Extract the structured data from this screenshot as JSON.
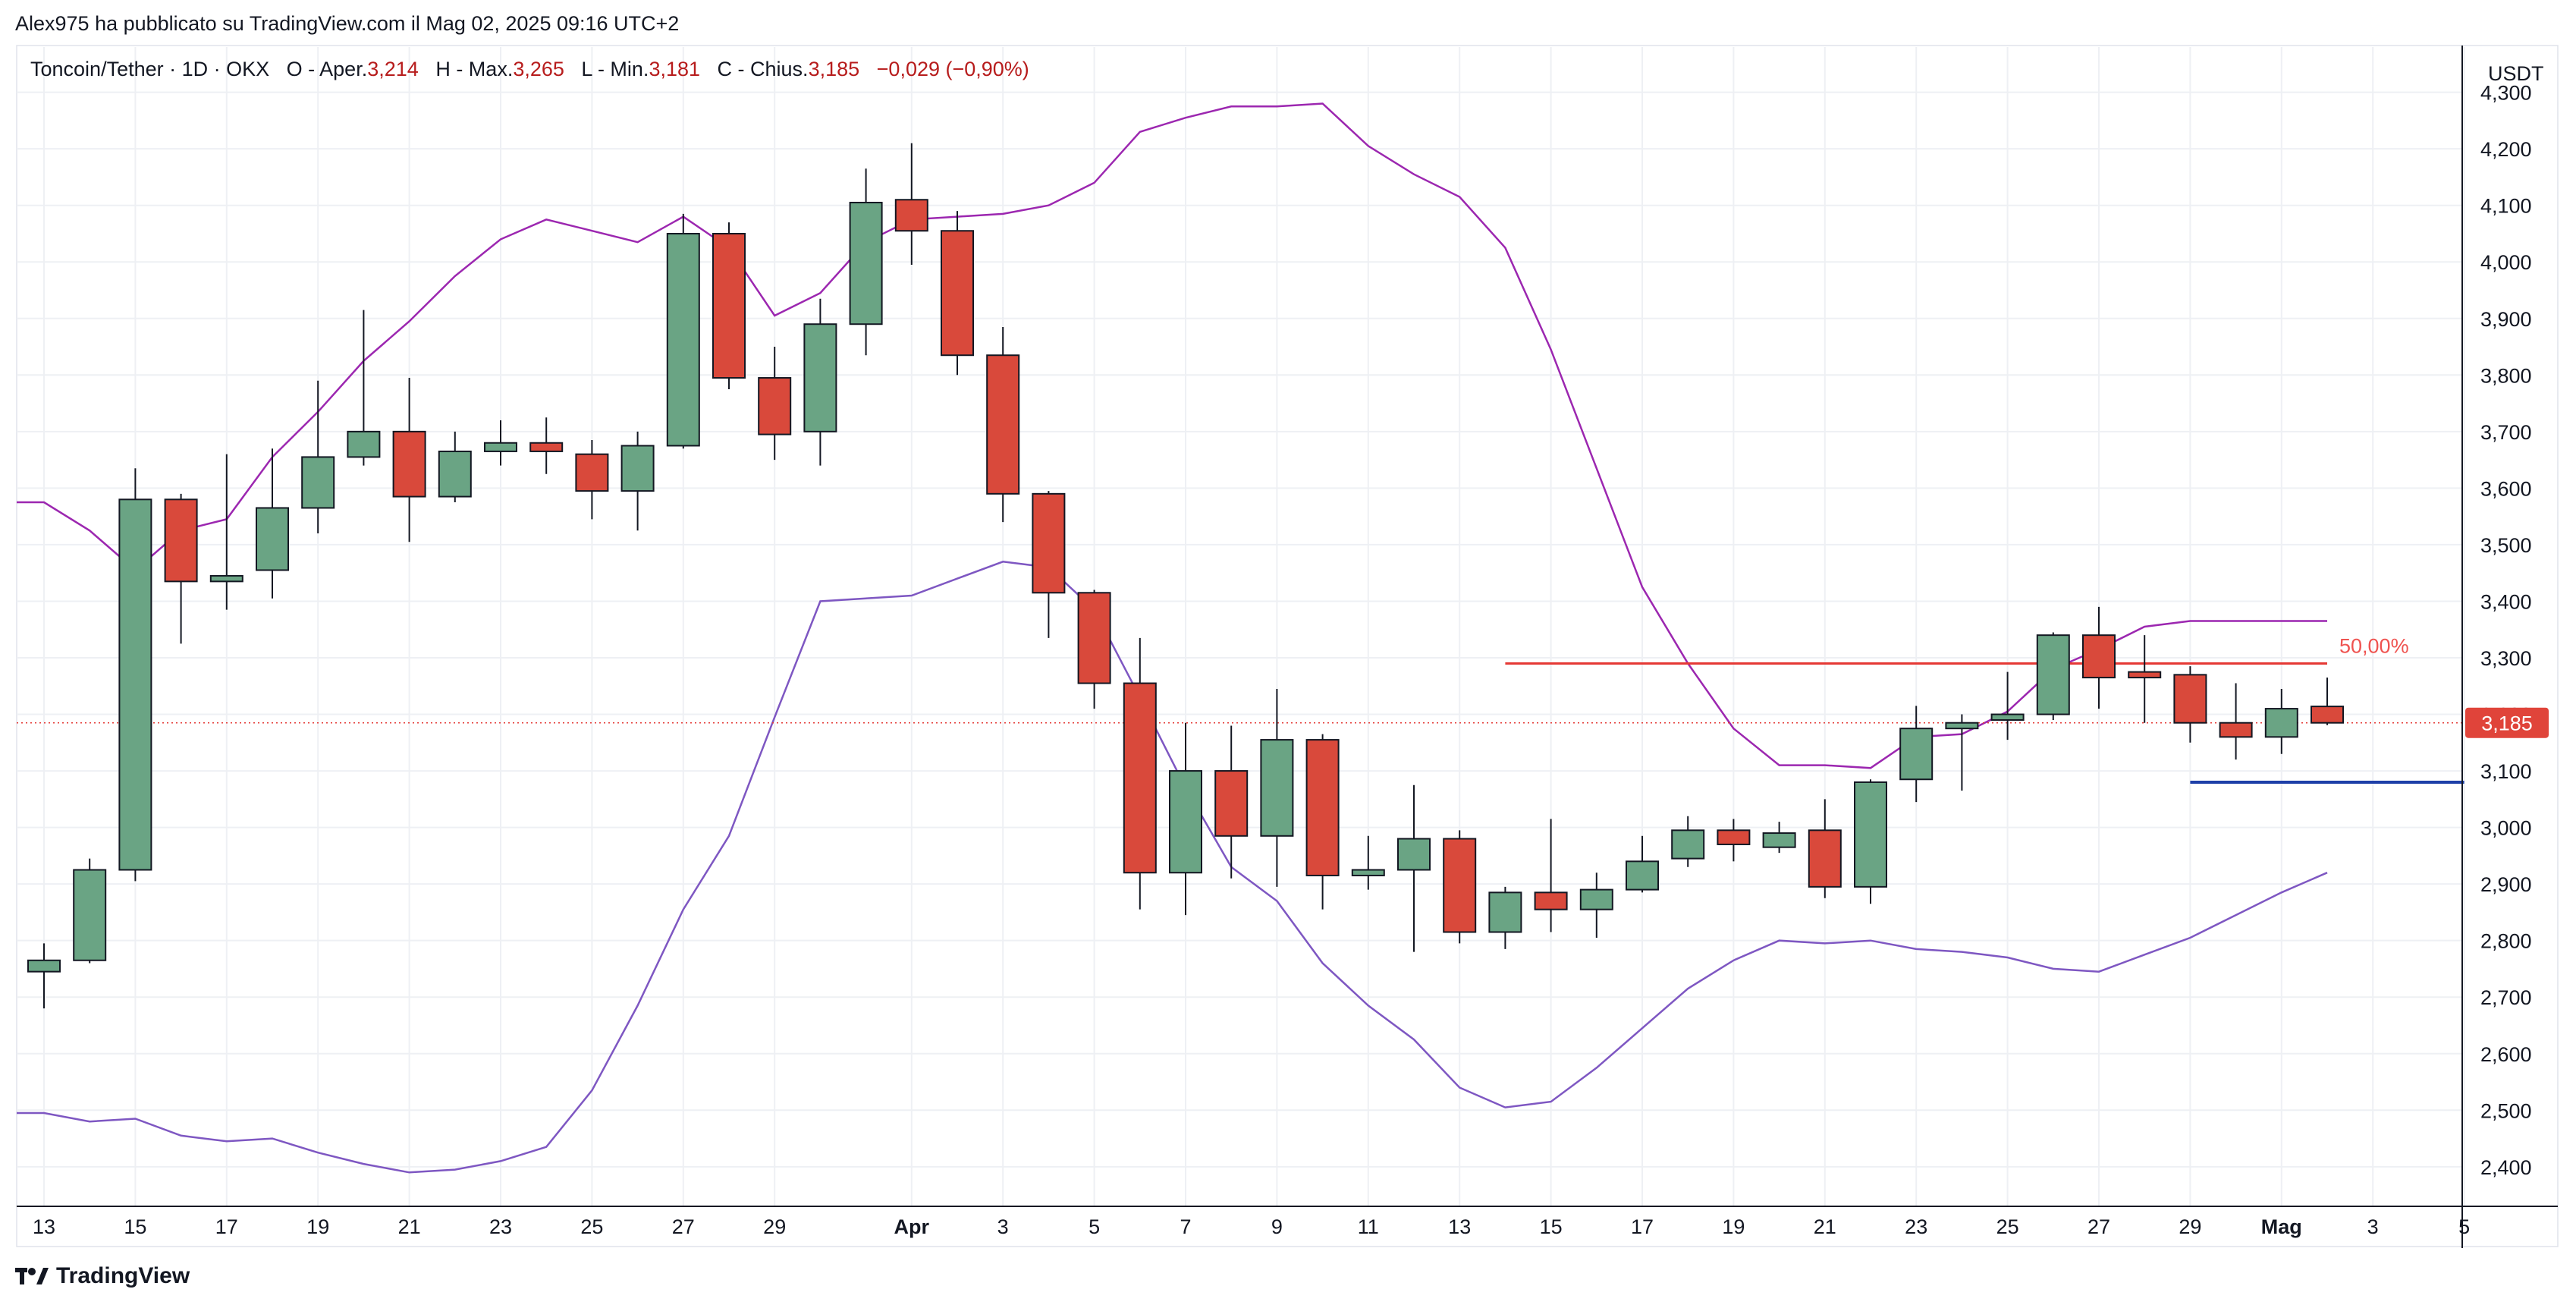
{
  "attribution": "Alex975 ha pubblicato su TradingView.com il Mag 02, 2025 09:16 UTC+2",
  "symbol_line": {
    "name": "Toncoin/Tether · 1D · OKX",
    "open_label": "O - Aper.",
    "open": "3,214",
    "high_label": "H - Max.",
    "high": "3,265",
    "low_label": "L - Min.",
    "low": "3,181",
    "close_label": "C - Chius.",
    "close": "3,185",
    "change": "−0,029 (−0,90%)"
  },
  "currency": "USDT",
  "footer_brand": "TradingView",
  "colors": {
    "up": "#6aa484",
    "down": "#d9493b",
    "band": "#9c27b0",
    "band_lower": "#7e57c2",
    "hline": "#e53935",
    "support": "#1e3fa8",
    "last_price_bg": "#e0443a"
  },
  "chart_data": {
    "type": "candlestick",
    "title": "Toncoin/Tether · 1D · OKX",
    "ylabel": "USDT",
    "ylim": [
      2.33,
      4.38
    ],
    "y_ticks": [
      "2,400",
      "2,500",
      "2,600",
      "2,700",
      "2,800",
      "2,900",
      "3,000",
      "3,100",
      "3,200",
      "3,300",
      "3,400",
      "3,500",
      "3,600",
      "3,700",
      "3,800",
      "3,900",
      "4,000",
      "4,100",
      "4,200",
      "4,300"
    ],
    "x_ticks": [
      {
        "label": "13",
        "i": 0
      },
      {
        "label": "15",
        "i": 2
      },
      {
        "label": "17",
        "i": 4
      },
      {
        "label": "19",
        "i": 6
      },
      {
        "label": "21",
        "i": 8
      },
      {
        "label": "23",
        "i": 10
      },
      {
        "label": "25",
        "i": 12
      },
      {
        "label": "27",
        "i": 14
      },
      {
        "label": "29",
        "i": 16
      },
      {
        "label": "Apr",
        "i": 19,
        "bold": true
      },
      {
        "label": "3",
        "i": 21
      },
      {
        "label": "5",
        "i": 23
      },
      {
        "label": "7",
        "i": 25
      },
      {
        "label": "9",
        "i": 27
      },
      {
        "label": "11",
        "i": 29
      },
      {
        "label": "13",
        "i": 31
      },
      {
        "label": "15",
        "i": 33
      },
      {
        "label": "17",
        "i": 35
      },
      {
        "label": "19",
        "i": 37
      },
      {
        "label": "21",
        "i": 39
      },
      {
        "label": "23",
        "i": 41
      },
      {
        "label": "25",
        "i": 43
      },
      {
        "label": "27",
        "i": 45
      },
      {
        "label": "29",
        "i": 47
      },
      {
        "label": "Mag",
        "i": 49,
        "bold": true
      },
      {
        "label": "3",
        "i": 51
      },
      {
        "label": "5",
        "i": 53
      }
    ],
    "candles": [
      {
        "date": "Mar 13",
        "o": 2.745,
        "h": 2.795,
        "l": 2.68,
        "c": 2.765
      },
      {
        "date": "Mar 14",
        "o": 2.765,
        "h": 2.945,
        "l": 2.76,
        "c": 2.925
      },
      {
        "date": "Mar 15",
        "o": 2.925,
        "h": 3.635,
        "l": 2.905,
        "c": 3.58
      },
      {
        "date": "Mar 16",
        "o": 3.58,
        "h": 3.59,
        "l": 3.325,
        "c": 3.435
      },
      {
        "date": "Mar 17",
        "o": 3.435,
        "h": 3.66,
        "l": 3.385,
        "c": 3.445
      },
      {
        "date": "Mar 18",
        "o": 3.455,
        "h": 3.67,
        "l": 3.405,
        "c": 3.565
      },
      {
        "date": "Mar 19",
        "o": 3.565,
        "h": 3.79,
        "l": 3.52,
        "c": 3.655
      },
      {
        "date": "Mar 20",
        "o": 3.655,
        "h": 3.915,
        "l": 3.64,
        "c": 3.7
      },
      {
        "date": "Mar 21",
        "o": 3.7,
        "h": 3.795,
        "l": 3.505,
        "c": 3.585
      },
      {
        "date": "Mar 22",
        "o": 3.585,
        "h": 3.7,
        "l": 3.575,
        "c": 3.665
      },
      {
        "date": "Mar 23",
        "o": 3.665,
        "h": 3.72,
        "l": 3.64,
        "c": 3.68
      },
      {
        "date": "Mar 24",
        "o": 3.68,
        "h": 3.725,
        "l": 3.625,
        "c": 3.665
      },
      {
        "date": "Mar 25",
        "o": 3.66,
        "h": 3.685,
        "l": 3.545,
        "c": 3.595
      },
      {
        "date": "Mar 26",
        "o": 3.595,
        "h": 3.7,
        "l": 3.525,
        "c": 3.675
      },
      {
        "date": "Mar 27",
        "o": 3.675,
        "h": 4.085,
        "l": 3.67,
        "c": 4.05
      },
      {
        "date": "Mar 28",
        "o": 4.05,
        "h": 4.07,
        "l": 3.775,
        "c": 3.795
      },
      {
        "date": "Mar 29",
        "o": 3.795,
        "h": 3.85,
        "l": 3.65,
        "c": 3.695
      },
      {
        "date": "Mar 30",
        "o": 3.7,
        "h": 3.935,
        "l": 3.64,
        "c": 3.89
      },
      {
        "date": "Mar 31",
        "o": 3.89,
        "h": 4.165,
        "l": 3.835,
        "c": 4.105
      },
      {
        "date": "Apr 1",
        "o": 4.11,
        "h": 4.21,
        "l": 3.995,
        "c": 4.055
      },
      {
        "date": "Apr 2",
        "o": 4.055,
        "h": 4.09,
        "l": 3.8,
        "c": 3.835
      },
      {
        "date": "Apr 3",
        "o": 3.835,
        "h": 3.885,
        "l": 3.54,
        "c": 3.59
      },
      {
        "date": "Apr 4",
        "o": 3.59,
        "h": 3.595,
        "l": 3.335,
        "c": 3.415
      },
      {
        "date": "Apr 5",
        "o": 3.415,
        "h": 3.42,
        "l": 3.21,
        "c": 3.255
      },
      {
        "date": "Apr 6",
        "o": 3.255,
        "h": 3.335,
        "l": 2.855,
        "c": 2.92
      },
      {
        "date": "Apr 7",
        "o": 2.92,
        "h": 3.185,
        "l": 2.845,
        "c": 3.1
      },
      {
        "date": "Apr 8",
        "o": 3.1,
        "h": 3.18,
        "l": 2.91,
        "c": 2.985
      },
      {
        "date": "Apr 9",
        "o": 2.985,
        "h": 3.245,
        "l": 2.895,
        "c": 3.155
      },
      {
        "date": "Apr 10",
        "o": 3.155,
        "h": 3.165,
        "l": 2.855,
        "c": 2.915
      },
      {
        "date": "Apr 11",
        "o": 2.915,
        "h": 2.985,
        "l": 2.89,
        "c": 2.925
      },
      {
        "date": "Apr 12",
        "o": 2.925,
        "h": 3.075,
        "l": 2.78,
        "c": 2.98
      },
      {
        "date": "Apr 13",
        "o": 2.98,
        "h": 2.995,
        "l": 2.795,
        "c": 2.815
      },
      {
        "date": "Apr 14",
        "o": 2.815,
        "h": 2.895,
        "l": 2.785,
        "c": 2.885
      },
      {
        "date": "Apr 15",
        "o": 2.885,
        "h": 3.015,
        "l": 2.815,
        "c": 2.855
      },
      {
        "date": "Apr 16",
        "o": 2.855,
        "h": 2.92,
        "l": 2.805,
        "c": 2.89
      },
      {
        "date": "Apr 17",
        "o": 2.89,
        "h": 2.985,
        "l": 2.885,
        "c": 2.94
      },
      {
        "date": "Apr 18",
        "o": 2.945,
        "h": 3.02,
        "l": 2.93,
        "c": 2.995
      },
      {
        "date": "Apr 19",
        "o": 2.995,
        "h": 3.015,
        "l": 2.94,
        "c": 2.97
      },
      {
        "date": "Apr 20",
        "o": 2.965,
        "h": 3.01,
        "l": 2.955,
        "c": 2.99
      },
      {
        "date": "Apr 21",
        "o": 2.995,
        "h": 3.05,
        "l": 2.875,
        "c": 2.895
      },
      {
        "date": "Apr 22",
        "o": 2.895,
        "h": 3.085,
        "l": 2.865,
        "c": 3.08
      },
      {
        "date": "Apr 23",
        "o": 3.085,
        "h": 3.215,
        "l": 3.045,
        "c": 3.175
      },
      {
        "date": "Apr 24",
        "o": 3.175,
        "h": 3.2,
        "l": 3.065,
        "c": 3.185
      },
      {
        "date": "Apr 25",
        "o": 3.19,
        "h": 3.275,
        "l": 3.155,
        "c": 3.2
      },
      {
        "date": "Apr 26",
        "o": 3.2,
        "h": 3.345,
        "l": 3.19,
        "c": 3.34
      },
      {
        "date": "Apr 27",
        "o": 3.34,
        "h": 3.39,
        "l": 3.21,
        "c": 3.265
      },
      {
        "date": "Apr 28",
        "o": 3.275,
        "h": 3.34,
        "l": 3.185,
        "c": 3.265
      },
      {
        "date": "Apr 29",
        "o": 3.27,
        "h": 3.285,
        "l": 3.15,
        "c": 3.185
      },
      {
        "date": "Apr 30",
        "o": 3.185,
        "h": 3.255,
        "l": 3.12,
        "c": 3.16
      },
      {
        "date": "May 1",
        "o": 3.16,
        "h": 3.245,
        "l": 3.13,
        "c": 3.21
      },
      {
        "date": "May 2",
        "o": 3.214,
        "h": 3.265,
        "l": 3.181,
        "c": 3.185
      }
    ],
    "bollinger_upper": [
      3.575,
      3.525,
      3.455,
      3.525,
      3.545,
      3.655,
      3.735,
      3.825,
      3.895,
      3.975,
      4.04,
      4.075,
      4.055,
      4.035,
      4.08,
      4.025,
      3.905,
      3.945,
      4.035,
      4.075,
      4.08,
      4.085,
      4.1,
      4.14,
      4.23,
      4.255,
      4.275,
      4.275,
      4.28,
      4.205,
      4.155,
      4.115,
      4.025,
      3.845,
      3.635,
      3.425,
      3.29,
      3.175,
      3.11,
      3.11,
      3.105,
      3.16,
      3.165,
      3.205,
      3.28,
      3.315,
      3.355,
      3.365,
      3.365,
      3.365,
      3.365
    ],
    "bollinger_lower": [
      2.495,
      2.48,
      2.485,
      2.455,
      2.445,
      2.45,
      2.425,
      2.405,
      2.39,
      2.395,
      2.41,
      2.435,
      2.535,
      2.685,
      2.855,
      2.985,
      3.195,
      3.4,
      3.405,
      3.41,
      3.44,
      3.47,
      3.46,
      3.385,
      3.23,
      3.07,
      2.93,
      2.87,
      2.76,
      2.685,
      2.625,
      2.54,
      2.505,
      2.515,
      2.575,
      2.645,
      2.715,
      2.765,
      2.8,
      2.795,
      2.8,
      2.785,
      2.78,
      2.77,
      2.75,
      2.745,
      2.775,
      2.805,
      2.845,
      2.885,
      2.92
    ],
    "horizontal_line": {
      "y": 3.29,
      "from_i": 32,
      "to_i": 50,
      "label": "50,00%"
    },
    "support_line": {
      "y": 3.08,
      "from_i": 47,
      "to_i": 53
    },
    "last_price": {
      "value": 3.185,
      "label": "3,185"
    },
    "grid": true
  }
}
